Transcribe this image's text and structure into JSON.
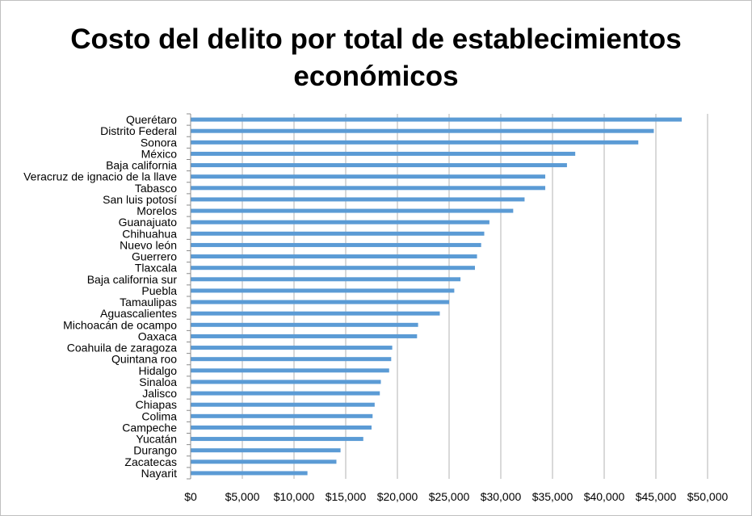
{
  "chart_data": {
    "type": "bar",
    "orientation": "horizontal",
    "title": "Costo del delito por total de establecimientos económicos",
    "xlabel": "",
    "ylabel": "",
    "xlim": [
      0,
      50000
    ],
    "x_ticks": [
      0,
      5000,
      10000,
      15000,
      20000,
      25000,
      30000,
      35000,
      40000,
      45000,
      50000
    ],
    "x_tick_labels": [
      "$0",
      "$5,000",
      "$10,000",
      "$15,000",
      "$20,000",
      "$25,000",
      "$30,000",
      "$35,000",
      "$40,000",
      "$45,000",
      "$50,000"
    ],
    "grid": "vertical",
    "legend": "none",
    "bar_color": "#5b9bd5",
    "categories": [
      "Querétaro",
      "Distrito Federal",
      "Sonora",
      "México",
      "Baja california",
      "Veracruz de ignacio de la llave",
      "Tabasco",
      "San luis potosí",
      "Morelos",
      "Guanajuato",
      "Chihuahua",
      "Nuevo león",
      "Guerrero",
      "Tlaxcala",
      "Baja california sur",
      "Puebla",
      "Tamaulipas",
      "Aguascalientes",
      "Michoacán de ocampo",
      "Oaxaca",
      "Coahuila de zaragoza",
      "Quintana roo",
      "Hidalgo",
      "Sinaloa",
      "Jalisco",
      "Chiapas",
      "Colima",
      "Campeche",
      "Yucatán",
      "Durango",
      "Zacatecas",
      "Nayarit"
    ],
    "values": [
      47500,
      44800,
      43300,
      37200,
      36400,
      34300,
      34300,
      32300,
      31200,
      28900,
      28400,
      28100,
      27700,
      27500,
      26100,
      25500,
      25000,
      24100,
      22000,
      21900,
      19500,
      19400,
      19200,
      18400,
      18300,
      17800,
      17600,
      17500,
      16700,
      14500,
      14100,
      11300
    ]
  }
}
